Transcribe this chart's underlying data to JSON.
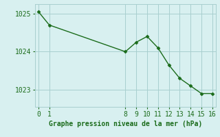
{
  "x": [
    0,
    1,
    8,
    9,
    10,
    11,
    12,
    13,
    14,
    15,
    16
  ],
  "y": [
    1025.05,
    1024.7,
    1024.0,
    1024.25,
    1024.4,
    1024.1,
    1023.65,
    1023.3,
    1023.1,
    1022.9,
    1022.9
  ],
  "xticks": [
    0,
    1,
    8,
    9,
    10,
    11,
    12,
    13,
    14,
    15,
    16
  ],
  "yticks": [
    1023,
    1024,
    1025
  ],
  "xlim": [
    -0.3,
    16.3
  ],
  "ylim": [
    1022.55,
    1025.25
  ],
  "xlabel": "Graphe pression niveau de la mer (hPa)",
  "line_color": "#1a6b1a",
  "marker": "D",
  "marker_size": 2.5,
  "bg_color": "#d8f0f0",
  "grid_color": "#a8cece",
  "text_color": "#1a6b1a",
  "xlabel_fontsize": 7,
  "tick_fontsize": 7,
  "linewidth": 1.0
}
